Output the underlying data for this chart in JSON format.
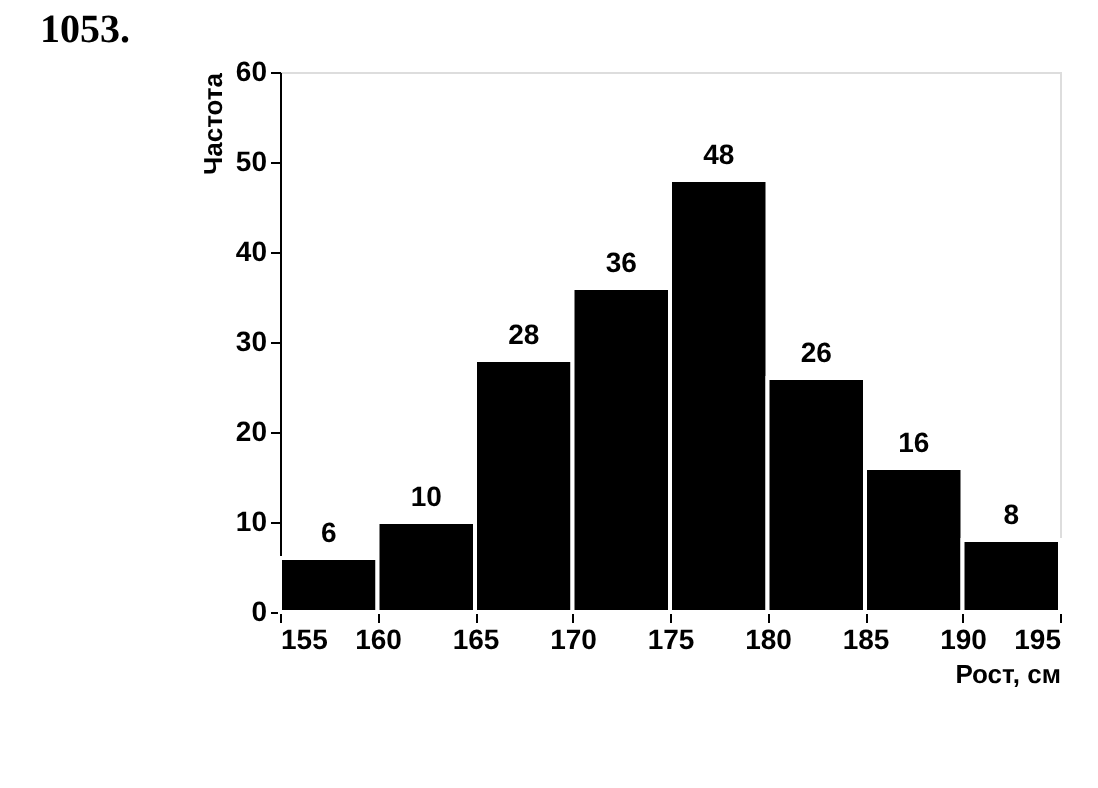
{
  "chart_data": {
    "type": "histogram",
    "title": "1053.",
    "xlabel": "Рост, см",
    "ylabel": "Частота",
    "bins": [
      155,
      160,
      165,
      170,
      175,
      180,
      185,
      190,
      195
    ],
    "values": [
      6,
      10,
      28,
      36,
      48,
      26,
      16,
      8
    ],
    "color": "#000000",
    "xlim": [
      155,
      195
    ],
    "xticks": [
      155,
      160,
      165,
      170,
      175,
      180,
      185,
      190,
      195
    ],
    "ylim": [
      0,
      60
    ],
    "yticks": [
      0,
      10,
      20,
      30,
      40,
      50,
      60
    ],
    "grid": false,
    "data_labels": true
  }
}
